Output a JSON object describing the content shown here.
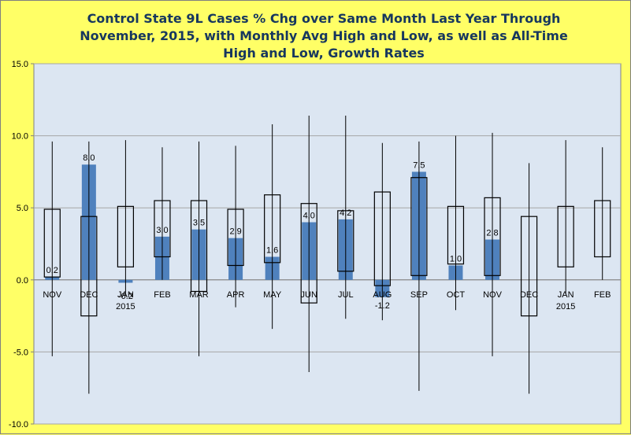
{
  "chart_data": {
    "type": "bar",
    "title": "Control State 9L Cases % Chg over Same Month Last Year Through November, 2015, with Monthly Avg High and Low, as well as All-Time High and Low,  Growth Rates",
    "xlabel": "",
    "ylabel": "",
    "ylim": [
      -10,
      15
    ],
    "yticks": [
      "15.0",
      "10.0",
      "5.0",
      "0.0",
      "-5.0",
      "-10.0"
    ],
    "grid": true,
    "legend": "none",
    "categories": [
      {
        "label": "NOV",
        "sub": ""
      },
      {
        "label": "DEC",
        "sub": ""
      },
      {
        "label": "JAN",
        "sub": "2015"
      },
      {
        "label": "FEB",
        "sub": ""
      },
      {
        "label": "MAR",
        "sub": ""
      },
      {
        "label": "APR",
        "sub": ""
      },
      {
        "label": "MAY",
        "sub": ""
      },
      {
        "label": "JUN",
        "sub": ""
      },
      {
        "label": "JUL",
        "sub": ""
      },
      {
        "label": "AUG",
        "sub": ""
      },
      {
        "label": "SEP",
        "sub": ""
      },
      {
        "label": "OCT",
        "sub": ""
      },
      {
        "label": "NOV",
        "sub": ""
      },
      {
        "label": "DEC",
        "sub": ""
      },
      {
        "label": "JAN",
        "sub": "2015"
      },
      {
        "label": "FEB",
        "sub": ""
      }
    ],
    "values": [
      0.2,
      8.0,
      -0.2,
      3.0,
      3.5,
      2.9,
      1.6,
      4.0,
      4.2,
      -1.2,
      7.5,
      1.0,
      2.8,
      null,
      null,
      null
    ],
    "value_labels": [
      "0.2",
      "8.0",
      "-0.2",
      "3.0",
      "3.5",
      "2.9",
      "1.6",
      "4.0",
      "4.2",
      "-1.2",
      "7.5",
      "1.0",
      "2.8",
      "",
      "",
      ""
    ],
    "avg_high": [
      4.9,
      4.4,
      5.1,
      5.5,
      5.5,
      4.9,
      5.9,
      5.3,
      4.8,
      6.1,
      7.1,
      5.1,
      5.7,
      4.4,
      5.1,
      5.5
    ],
    "avg_low": [
      0.2,
      -2.5,
      0.9,
      1.6,
      -0.8,
      1.0,
      1.2,
      -1.6,
      0.6,
      -0.4,
      0.3,
      1.1,
      0.3,
      -2.5,
      0.9,
      1.6
    ],
    "all_time_high": [
      9.6,
      9.6,
      9.7,
      9.2,
      9.6,
      9.3,
      10.8,
      11.4,
      11.4,
      9.5,
      9.6,
      10.0,
      10.2,
      8.1,
      9.7,
      9.2
    ],
    "all_time_low": [
      -5.3,
      -7.9,
      -1.0,
      0.0,
      -5.3,
      -1.9,
      -3.4,
      -6.4,
      -2.7,
      -2.8,
      -7.7,
      -2.1,
      -5.3,
      -7.9,
      -1.0,
      0.0
    ],
    "colors": {
      "bar": "#4f81bd",
      "plot_bg": "#dce6f2",
      "page_bg": "#ffff66",
      "grid": "#a6a6a6",
      "title": "#17375e",
      "box": "#000000"
    }
  }
}
